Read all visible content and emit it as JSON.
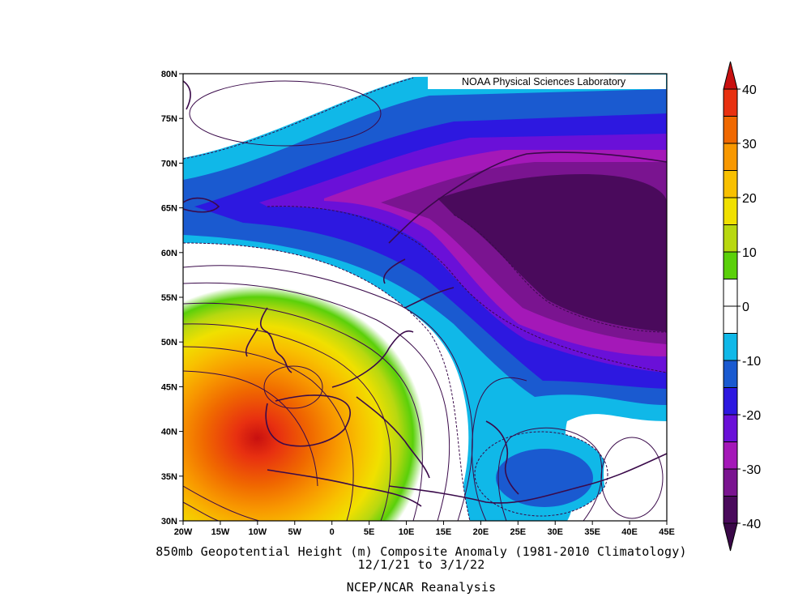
{
  "credit": "NOAA Physical Sciences Laboratory",
  "lat_labels": [
    "80N",
    "75N",
    "70N",
    "65N",
    "60N",
    "55N",
    "50N",
    "45N",
    "40N",
    "35N",
    "30N"
  ],
  "lon_labels": [
    "20W",
    "15W",
    "10W",
    "5W",
    "0",
    "5E",
    "10E",
    "15E",
    "20E",
    "25E",
    "30E",
    "35E",
    "40E",
    "45E"
  ],
  "title_line1": "850mb Geopotential Height (m) Composite Anomaly (1981-2010 Climatology)",
  "title_line2": "12/1/21  to 3/1/22",
  "source": "NCEP/NCAR Reanalysis",
  "colorbar": {
    "labels": [
      "40",
      "30",
      "20",
      "10",
      "0",
      "-10",
      "-20",
      "-30",
      "-40"
    ],
    "colors": [
      "#4a0a5c",
      "#7a1490",
      "#a418b8",
      "#6a10d8",
      "#2d18e0",
      "#1a5ad0",
      "#10b8e8",
      "#ffffff",
      "#ffffff",
      "#5ad00a",
      "#b8d810",
      "#f0e000",
      "#f8c000",
      "#f89800",
      "#f06800",
      "#e83010"
    ],
    "over_color": "#c81010",
    "under_color": "#3a0848"
  }
}
